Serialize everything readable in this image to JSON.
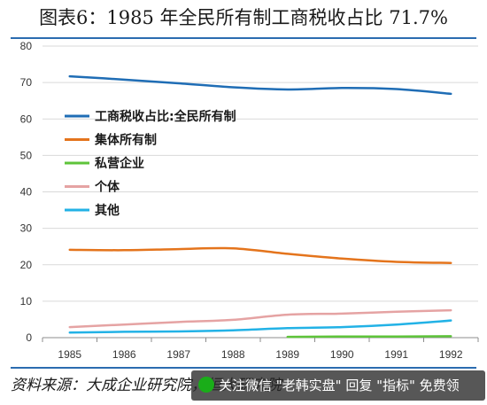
{
  "title": "图表6：1985 年全民所有制工商税收占比 71.7%",
  "source": "资料来源：大成企业研究院，恒大研究院",
  "watermark": {
    "text": "关注微信 \"老韩实盘\" 回复 \"指标\" 免费领",
    "icon": "wechat-icon"
  },
  "colors": {
    "rule": "#2b6cb0"
  },
  "chart_data": {
    "type": "line",
    "x": [
      "1985",
      "1986",
      "1987",
      "1988",
      "1989",
      "1990",
      "1991",
      "1992"
    ],
    "ylim": [
      0,
      80
    ],
    "yticks": [
      "0",
      "10",
      "20",
      "30",
      "40",
      "50",
      "60",
      "70",
      "80"
    ],
    "grid": true,
    "legend_position": "left-middle",
    "series": [
      {
        "name": "工商税收占比:全民所有制",
        "color": "#1f6db5",
        "values": [
          71.7,
          70.8,
          69.8,
          68.7,
          68.1,
          68.5,
          68.2,
          66.9
        ]
      },
      {
        "name": "集体所有制",
        "color": "#e4741c",
        "values": [
          24.1,
          24.0,
          24.3,
          24.5,
          23.0,
          21.7,
          20.8,
          20.5
        ]
      },
      {
        "name": "私营企业",
        "color": "#5ec43a",
        "values": [
          null,
          null,
          null,
          null,
          0.2,
          0.3,
          0.3,
          0.4
        ]
      },
      {
        "name": "个体",
        "color": "#e5a3a3",
        "values": [
          2.9,
          3.6,
          4.3,
          4.9,
          6.3,
          6.6,
          7.1,
          7.5
        ]
      },
      {
        "name": "其他",
        "color": "#22b2e6",
        "values": [
          1.4,
          1.6,
          1.7,
          2.0,
          2.6,
          2.9,
          3.6,
          4.7
        ]
      }
    ]
  }
}
